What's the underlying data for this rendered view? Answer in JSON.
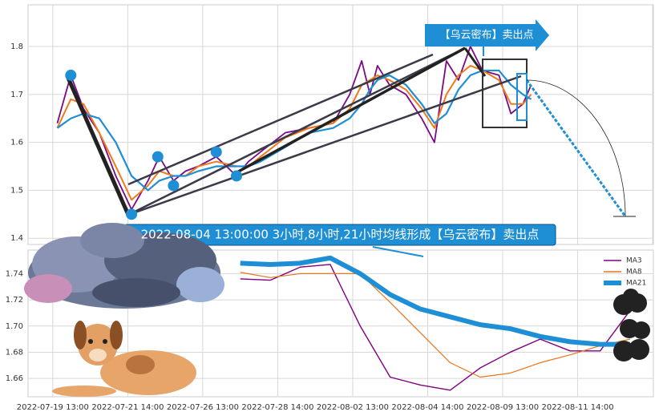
{
  "chart_data": [
    {
      "type": "line",
      "annotations": [
        "【乌云密布】卖出点",
        "2022-08-04 13:00:00 3小时,8小时,21小时均线形成【乌云密布】卖出点"
      ],
      "xlim": [
        -0.33,
        8.01
      ],
      "xticks": [
        0,
        1,
        2,
        3,
        4,
        5,
        6,
        7,
        8
      ],
      "ylim": [
        1.387,
        1.887
      ],
      "yticks": [
        1.4,
        1.5,
        1.6,
        1.7,
        1.8
      ],
      "grid": true,
      "x": [
        0.06,
        0.24,
        0.41,
        0.62,
        0.84,
        1.05,
        1.27,
        1.42,
        1.61,
        1.77,
        1.94,
        2.18,
        2.45,
        2.61,
        2.77,
        3.1,
        3.42,
        3.74,
        3.96,
        4.12,
        4.23,
        4.33,
        4.49,
        4.71,
        4.92,
        5.09,
        5.25,
        5.41,
        5.57,
        5.73,
        5.95,
        6.11,
        6.27,
        6.38
      ],
      "series": [
        {
          "color": "#7a0a86",
          "values": [
            1.64,
            1.74,
            1.67,
            1.62,
            1.53,
            1.46,
            1.52,
            1.57,
            1.52,
            1.54,
            1.55,
            1.57,
            1.53,
            1.56,
            1.58,
            1.62,
            1.63,
            1.64,
            1.7,
            1.77,
            1.7,
            1.76,
            1.72,
            1.7,
            1.65,
            1.6,
            1.77,
            1.73,
            1.8,
            1.75,
            1.74,
            1.66,
            1.68,
            1.72
          ]
        },
        {
          "color": "#f07a1a",
          "values": [
            1.63,
            1.69,
            1.68,
            1.62,
            1.55,
            1.48,
            1.51,
            1.54,
            1.53,
            1.53,
            1.55,
            1.56,
            1.55,
            1.55,
            1.57,
            1.61,
            1.63,
            1.64,
            1.67,
            1.72,
            1.73,
            1.74,
            1.73,
            1.71,
            1.67,
            1.63,
            1.7,
            1.74,
            1.76,
            1.75,
            1.73,
            1.68,
            1.68,
            1.7
          ]
        },
        {
          "color": "#1e8fd5",
          "values": [
            1.63,
            1.65,
            1.66,
            1.65,
            1.6,
            1.53,
            1.5,
            1.52,
            1.53,
            1.53,
            1.54,
            1.55,
            1.55,
            1.55,
            1.56,
            1.59,
            1.62,
            1.63,
            1.65,
            1.68,
            1.71,
            1.73,
            1.74,
            1.72,
            1.68,
            1.64,
            1.66,
            1.71,
            1.74,
            1.75,
            1.75,
            1.72,
            1.7,
            1.69
          ]
        }
      ],
      "pivots": {
        "x": [
          0.24,
          1.05,
          1.4,
          1.61,
          2.18,
          2.45
        ],
        "y": [
          1.74,
          1.45,
          1.57,
          1.51,
          1.58,
          1.53
        ],
        "color": "#1e8fd5"
      }
    },
    {
      "type": "line",
      "xlim": [
        -0.33,
        8.01
      ],
      "xticks": [
        {
          "value": 0,
          "label": "2022-07-19 13:00"
        },
        {
          "value": 1,
          "label": "2022-07-21 14:00"
        },
        {
          "value": 2,
          "label": "2022-07-26 13:00"
        },
        {
          "value": 3,
          "label": "2022-07-28 14:00"
        },
        {
          "value": 4,
          "label": "2022-08-02 13:00"
        },
        {
          "value": 5,
          "label": "2022-08-04 14:00"
        },
        {
          "value": 6,
          "label": "2022-08-09 13:00"
        },
        {
          "value": 7,
          "label": "2022-08-11 14:00"
        }
      ],
      "ylim": [
        1.646,
        1.758
      ],
      "yticks": [
        1.66,
        1.68,
        {
          "value": 1.7,
          "label": "1.70"
        },
        1.72,
        1.74
      ],
      "grid": true,
      "legend": "upper right",
      "x": [
        2.5,
        2.9,
        3.3,
        3.7,
        4.1,
        4.5,
        4.9,
        5.3,
        5.7,
        6.1,
        6.5,
        6.9,
        7.3,
        7.7
      ],
      "series": [
        {
          "name": "MA3",
          "color": "#800080",
          "values": [
            1.736,
            1.735,
            1.745,
            1.747,
            1.7,
            1.661,
            1.655,
            1.651,
            1.668,
            1.68,
            1.69,
            1.681,
            1.681,
            1.712
          ]
        },
        {
          "name": "MA8",
          "color": "#e8741c",
          "values": [
            1.741,
            1.737,
            1.74,
            1.74,
            1.74,
            1.718,
            1.695,
            1.672,
            1.661,
            1.664,
            1.672,
            1.678,
            1.685,
            1.69
          ]
        },
        {
          "name": "MA21",
          "color": "#1e8fd5",
          "values": [
            1.748,
            1.747,
            1.748,
            1.752,
            1.74,
            1.724,
            1.713,
            1.707,
            1.701,
            1.698,
            1.692,
            1.688,
            1.686,
            1.686
          ]
        }
      ]
    }
  ]
}
